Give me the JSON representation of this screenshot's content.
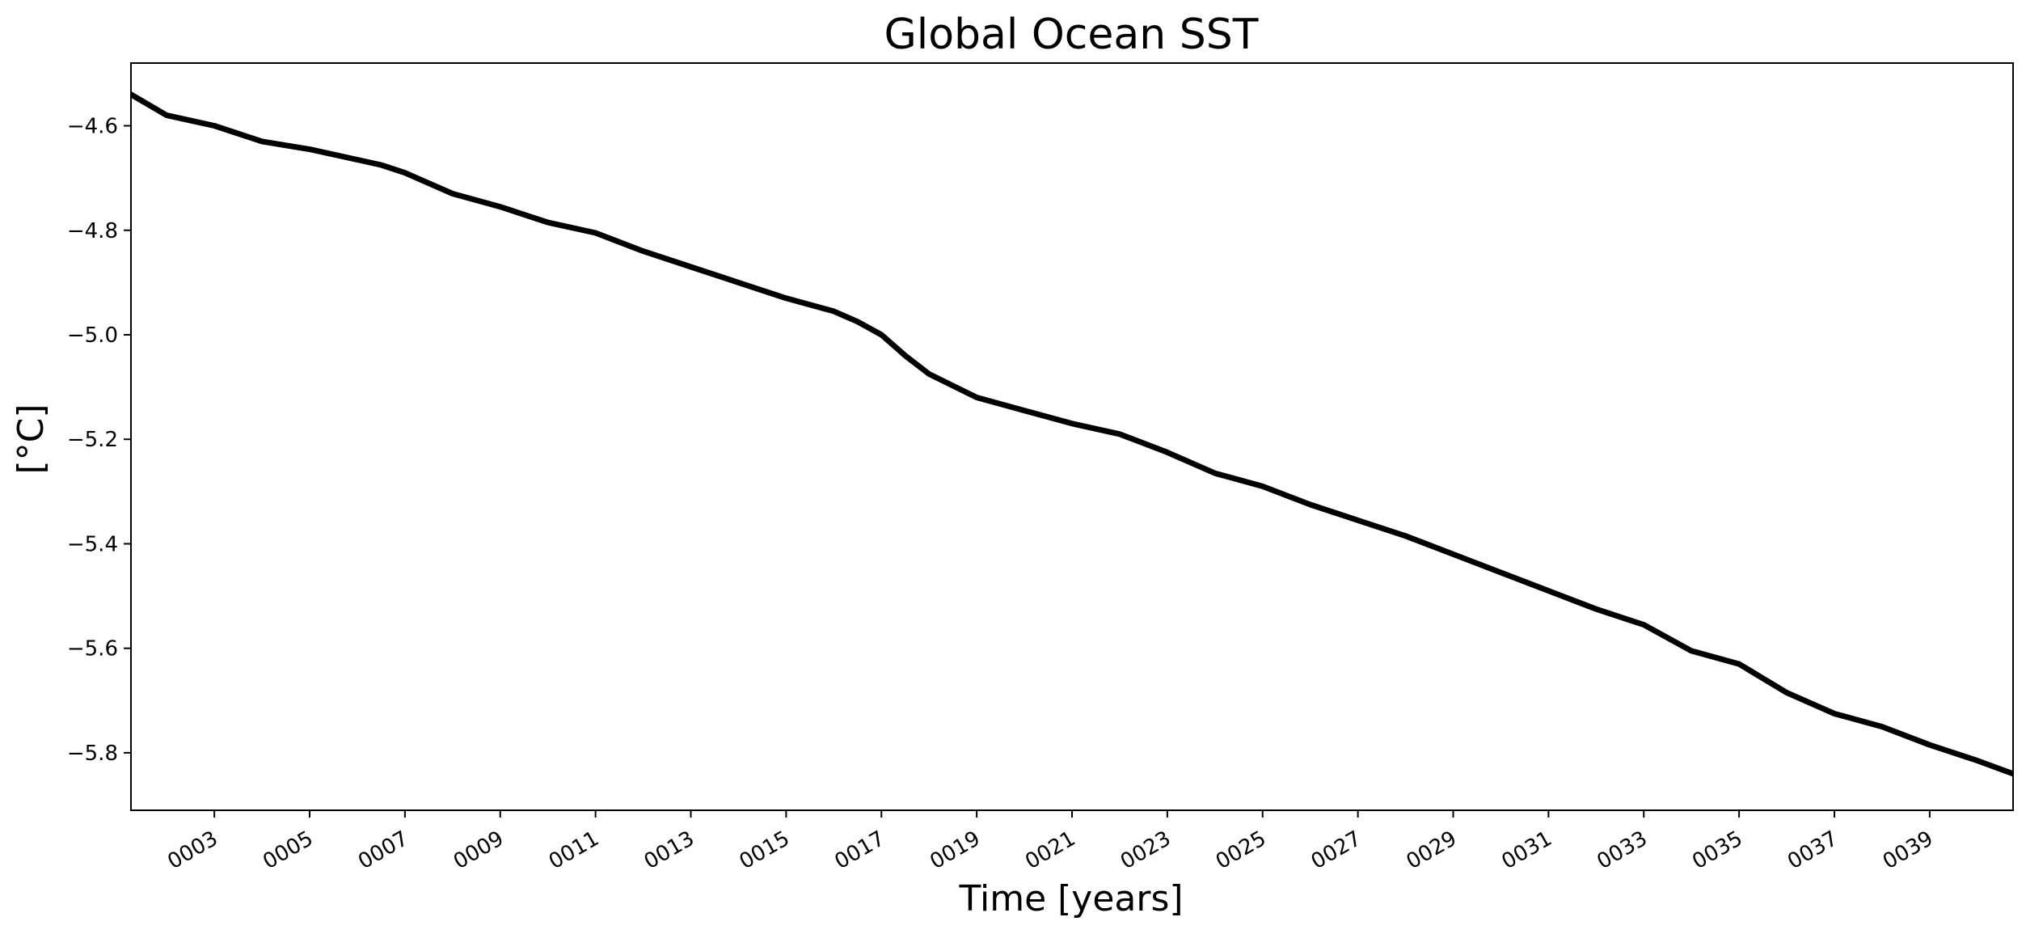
{
  "chart_data": {
    "type": "line",
    "title": "Global Ocean SST",
    "xlabel": "Time [years]",
    "ylabel": "[°C]",
    "xlim": [
      1.25,
      40.75
    ],
    "ylim": [
      -5.91,
      -4.48
    ],
    "grid": false,
    "x_ticks": [
      3,
      5,
      7,
      9,
      11,
      13,
      15,
      17,
      19,
      21,
      23,
      25,
      27,
      29,
      31,
      33,
      35,
      37,
      39
    ],
    "x_tick_labels": [
      "0003",
      "0005",
      "0007",
      "0009",
      "0011",
      "0013",
      "0015",
      "0017",
      "0019",
      "0021",
      "0023",
      "0025",
      "0027",
      "0029",
      "0031",
      "0033",
      "0035",
      "0037",
      "0039"
    ],
    "y_ticks": [
      -4.6,
      -4.8,
      -5.0,
      -5.2,
      -5.4,
      -5.6,
      -5.8
    ],
    "y_tick_labels": [
      "−4.6",
      "−4.8",
      "−5.0",
      "−5.2",
      "−5.4",
      "−5.6",
      "−5.8"
    ],
    "series": [
      {
        "color": "#000000",
        "x": [
          1.25,
          2.0,
          2.5,
          3.0,
          4.0,
          5.0,
          6.0,
          6.5,
          7.0,
          8.0,
          9.0,
          10.0,
          11.0,
          12.0,
          13.0,
          14.0,
          15.0,
          16.0,
          16.5,
          17.0,
          17.5,
          18.0,
          19.0,
          20.0,
          21.0,
          22.0,
          23.0,
          24.0,
          25.0,
          26.0,
          27.0,
          28.0,
          29.0,
          30.0,
          31.0,
          32.0,
          33.0,
          34.0,
          35.0,
          36.0,
          37.0,
          38.0,
          39.0,
          40.0,
          40.75
        ],
        "y": [
          -4.54,
          -4.58,
          -4.59,
          -4.6,
          -4.63,
          -4.645,
          -4.665,
          -4.675,
          -4.69,
          -4.73,
          -4.755,
          -4.785,
          -4.805,
          -4.84,
          -4.87,
          -4.9,
          -4.93,
          -4.955,
          -4.975,
          -5.0,
          -5.04,
          -5.075,
          -5.12,
          -5.145,
          -5.17,
          -5.19,
          -5.225,
          -5.265,
          -5.29,
          -5.325,
          -5.355,
          -5.385,
          -5.42,
          -5.455,
          -5.49,
          -5.525,
          -5.555,
          -5.605,
          -5.63,
          -5.685,
          -5.725,
          -5.75,
          -5.785,
          -5.815,
          -5.84
        ]
      }
    ]
  }
}
